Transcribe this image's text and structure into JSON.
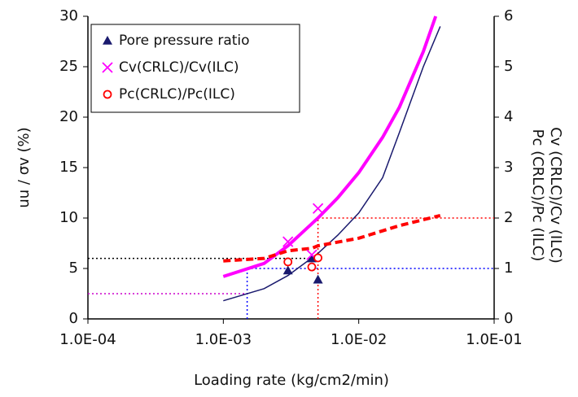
{
  "chart_data": {
    "type": "scatter",
    "xlabel": "Loading rate (kg/cm2/min)",
    "ylabel": "uu / σv (%)",
    "y2label": [
      "Cv (CRLC)/Cv (ILC)",
      "Pc (CRLC)/Pc (ILC)"
    ],
    "xscale": "log",
    "xlim": [
      0.0001,
      0.1
    ],
    "xticks": [
      {
        "value": 0.0001,
        "label": "1.0E-04"
      },
      {
        "value": 0.001,
        "label": "1.0E-03"
      },
      {
        "value": 0.01,
        "label": "1.0E-02"
      },
      {
        "value": 0.1,
        "label": "1.0E-01"
      }
    ],
    "ylim": [
      0,
      30
    ],
    "yticks": [
      0,
      5,
      10,
      15,
      20,
      25,
      30
    ],
    "y2lim": [
      0,
      6
    ],
    "y2ticks": [
      0,
      1,
      2,
      3,
      4,
      5,
      6
    ],
    "grid": false,
    "legend": "upper left",
    "series": [
      {
        "name": "Pore pressure ratio",
        "color": "#1a1a6e",
        "marker": "triangle",
        "axis": "y",
        "x": [
          0.003,
          0.0045,
          0.005
        ],
        "values": [
          4.8,
          6,
          3.9
        ]
      },
      {
        "name": "Cv(CRLC)/Cv(ILC)",
        "color": "#ff00ff",
        "marker": "x",
        "axis": "y2",
        "x": [
          0.003,
          0.0045,
          0.005
        ],
        "values": [
          1.53,
          1.27,
          2.19
        ]
      },
      {
        "name": "Pc(CRLC)/Pc(ILC)",
        "color": "#ff0000",
        "marker": "circle",
        "axis": "y2",
        "x": [
          0.003,
          0.0045,
          0.005
        ],
        "values": [
          1.13,
          1.03,
          1.21
        ]
      }
    ],
    "fit_lines": [
      {
        "color": "#ff00ff",
        "style": "thick",
        "axis": "y2",
        "x": [
          0.001,
          0.002,
          0.003,
          0.005,
          0.007,
          0.01,
          0.015,
          0.02,
          0.03,
          0.037
        ],
        "values": [
          0.84,
          1.1,
          1.45,
          2.0,
          2.4,
          2.9,
          3.6,
          4.2,
          5.3,
          6.0
        ]
      },
      {
        "color": "#1a1a6e",
        "style": "thin",
        "axis": "y",
        "x": [
          0.001,
          0.002,
          0.003,
          0.005,
          0.007,
          0.01,
          0.015,
          0.02,
          0.03,
          0.04
        ],
        "values": [
          1.8,
          3,
          4.3,
          6.5,
          8.3,
          10.5,
          14,
          18.5,
          25,
          29
        ]
      },
      {
        "color": "#ff0000",
        "style": "dashed",
        "axis": "y2",
        "x": [
          0.001,
          0.002,
          0.003,
          0.0045,
          0.005,
          0.01,
          0.02,
          0.04
        ],
        "values": [
          1.15,
          1.2,
          1.35,
          1.4,
          1.45,
          1.6,
          1.85,
          2.05
        ]
      }
    ],
    "reference_lines": [
      {
        "color": "#000000",
        "axis": "y",
        "x": [
          0.0001,
          0.0045
        ],
        "values": [
          6,
          6
        ]
      },
      {
        "color": "#0000ff",
        "axis": "y",
        "x": [
          0.0015,
          0.1
        ],
        "values": [
          5,
          5
        ]
      },
      {
        "color": "#0000ff",
        "axis": "y",
        "x": [
          0.0015,
          0.0015
        ],
        "values": [
          0,
          5
        ]
      },
      {
        "color": "#cc00cc",
        "axis": "y",
        "x": [
          0.0001,
          0.0015
        ],
        "values": [
          2.5,
          2.5
        ]
      },
      {
        "color": "#ff0000",
        "axis": "y",
        "x": [
          0.005,
          0.1
        ],
        "values": [
          10,
          10
        ]
      },
      {
        "color": "#ff0000",
        "axis": "y",
        "x": [
          0.005,
          0.005
        ],
        "values": [
          0,
          10
        ]
      }
    ]
  }
}
